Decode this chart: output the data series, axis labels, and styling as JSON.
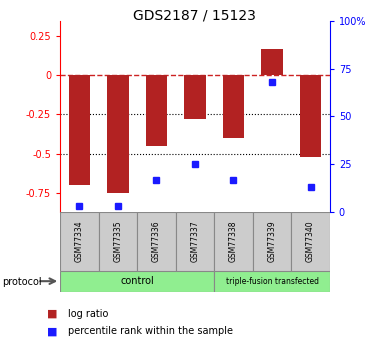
{
  "title": "GDS2187 / 15123",
  "samples": [
    "GSM77334",
    "GSM77335",
    "GSM77336",
    "GSM77337",
    "GSM77338",
    "GSM77339",
    "GSM77340"
  ],
  "log_ratios": [
    -0.7,
    -0.75,
    -0.45,
    -0.28,
    -0.4,
    0.17,
    -0.52
  ],
  "percentile_ranks": [
    3,
    3,
    17,
    25,
    17,
    68,
    13
  ],
  "ylim_left": [
    -0.875,
    0.35
  ],
  "ylim_right": [
    0,
    100
  ],
  "n_control": 4,
  "n_treated": 3,
  "control_label": "control",
  "treated_label": "triple-fusion transfected",
  "protocol_label": "protocol",
  "bar_color": "#b22222",
  "dot_color": "#1a1aff",
  "legend_log_ratio": "log ratio",
  "legend_percentile": "percentile rank within the sample",
  "hline_color": "#cc2222",
  "grid_color": "#000000",
  "sample_box_color": "#cccccc",
  "control_fill": "#90ee90",
  "treated_fill": "#90ee90",
  "bar_width": 0.55,
  "yticks_left": [
    0.25,
    0,
    -0.25,
    -0.5,
    -0.75
  ],
  "ytick_labels_left": [
    "0.25",
    "0",
    "-0.25",
    "-0.5",
    "-0.75"
  ],
  "yticks_right": [
    0,
    25,
    50,
    75,
    100
  ],
  "ytick_labels_right": [
    "0",
    "25",
    "50",
    "75",
    "100%"
  ]
}
